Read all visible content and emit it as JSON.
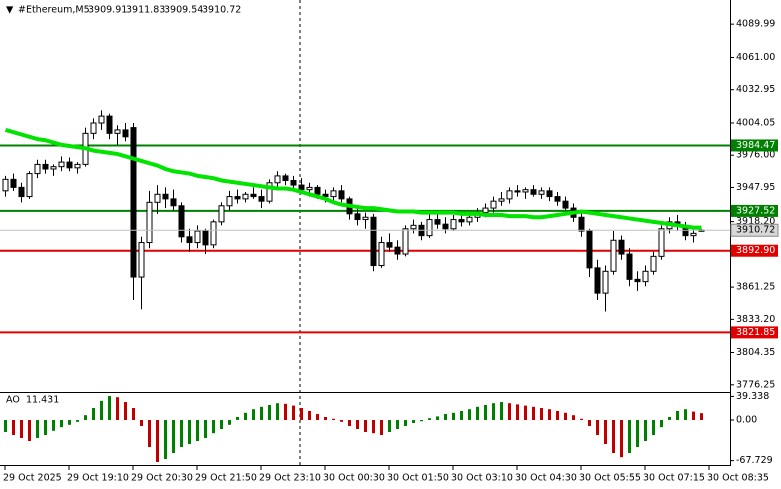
{
  "chart_data": {
    "type": "candlestick",
    "title": "#Ethereum,M5",
    "candles": [
      [
        3945,
        3958,
        3940,
        3955
      ],
      [
        3955,
        3960,
        3945,
        3948
      ],
      [
        3948,
        3952,
        3935,
        3940
      ],
      [
        3940,
        3962,
        3938,
        3960
      ],
      [
        3960,
        3972,
        3956,
        3968
      ],
      [
        3968,
        3972,
        3960,
        3964
      ],
      [
        3964,
        3968,
        3958,
        3966
      ],
      [
        3966,
        3975,
        3962,
        3970
      ],
      [
        3970,
        3974,
        3962,
        3965
      ],
      [
        3965,
        3970,
        3960,
        3968
      ],
      [
        3968,
        4000,
        3966,
        3995
      ],
      [
        3995,
        4008,
        3990,
        4004
      ],
      [
        4004,
        4015,
        3998,
        4010
      ],
      [
        4010,
        4012,
        3990,
        3995
      ],
      [
        3995,
        4002,
        3985,
        3998
      ],
      [
        3998,
        4004,
        3988,
        3992
      ],
      [
        4000,
        4004,
        3850,
        3870
      ],
      [
        3870,
        3905,
        3842,
        3900
      ],
      [
        3900,
        3945,
        3895,
        3935
      ],
      [
        3935,
        3950,
        3925,
        3942
      ],
      [
        3942,
        3948,
        3930,
        3938
      ],
      [
        3938,
        3946,
        3928,
        3932
      ],
      [
        3932,
        3935,
        3900,
        3905
      ],
      [
        3905,
        3912,
        3892,
        3900
      ],
      [
        3900,
        3915,
        3895,
        3910
      ],
      [
        3910,
        3912,
        3890,
        3898
      ],
      [
        3898,
        3920,
        3895,
        3918
      ],
      [
        3918,
        3935,
        3915,
        3932
      ],
      [
        3932,
        3945,
        3928,
        3940
      ],
      [
        3940,
        3946,
        3934,
        3938
      ],
      [
        3938,
        3944,
        3935,
        3942
      ],
      [
        3942,
        3948,
        3938,
        3940
      ],
      [
        3940,
        3946,
        3930,
        3936
      ],
      [
        3936,
        3955,
        3934,
        3952
      ],
      [
        3952,
        3962,
        3948,
        3958
      ],
      [
        3958,
        3960,
        3950,
        3954
      ],
      [
        3954,
        3958,
        3946,
        3950
      ],
      [
        3950,
        3956,
        3942,
        3946
      ],
      [
        3946,
        3952,
        3940,
        3948
      ],
      [
        3948,
        3950,
        3938,
        3942
      ],
      [
        3942,
        3946,
        3935,
        3940
      ],
      [
        3940,
        3948,
        3936,
        3945
      ],
      [
        3945,
        3950,
        3935,
        3938
      ],
      [
        3938,
        3940,
        3920,
        3925
      ],
      [
        3925,
        3930,
        3915,
        3920
      ],
      [
        3920,
        3926,
        3912,
        3922
      ],
      [
        3922,
        3925,
        3875,
        3880
      ],
      [
        3880,
        3905,
        3878,
        3900
      ],
      [
        3900,
        3908,
        3892,
        3896
      ],
      [
        3896,
        3902,
        3885,
        3890
      ],
      [
        3890,
        3915,
        3888,
        3912
      ],
      [
        3912,
        3920,
        3908,
        3915
      ],
      [
        3915,
        3918,
        3902,
        3906
      ],
      [
        3906,
        3925,
        3904,
        3920
      ],
      [
        3920,
        3926,
        3912,
        3916
      ],
      [
        3916,
        3922,
        3908,
        3912
      ],
      [
        3912,
        3924,
        3910,
        3920
      ],
      [
        3920,
        3926,
        3914,
        3918
      ],
      [
        3918,
        3926,
        3915,
        3922
      ],
      [
        3922,
        3930,
        3918,
        3926
      ],
      [
        3926,
        3934,
        3922,
        3930
      ],
      [
        3930,
        3940,
        3926,
        3936
      ],
      [
        3936,
        3944,
        3932,
        3938
      ],
      [
        3938,
        3948,
        3934,
        3945
      ],
      [
        3945,
        3950,
        3940,
        3944
      ],
      [
        3944,
        3948,
        3938,
        3946
      ],
      [
        3946,
        3950,
        3940,
        3942
      ],
      [
        3942,
        3948,
        3938,
        3945
      ],
      [
        3945,
        3948,
        3936,
        3940
      ],
      [
        3940,
        3944,
        3932,
        3936
      ],
      [
        3936,
        3940,
        3928,
        3930
      ],
      [
        3930,
        3934,
        3918,
        3922
      ],
      [
        3922,
        3926,
        3905,
        3910
      ],
      [
        3910,
        3912,
        3870,
        3878
      ],
      [
        3878,
        3885,
        3850,
        3856
      ],
      [
        3856,
        3880,
        3840,
        3875
      ],
      [
        3875,
        3910,
        3872,
        3902
      ],
      [
        3902,
        3906,
        3885,
        3890
      ],
      [
        3890,
        3895,
        3862,
        3868
      ],
      [
        3868,
        3875,
        3858,
        3866
      ],
      [
        3866,
        3880,
        3862,
        3875
      ],
      [
        3875,
        3892,
        3872,
        3888
      ],
      [
        3888,
        3915,
        3885,
        3912
      ],
      [
        3912,
        3922,
        3908,
        3918
      ],
      [
        3918,
        3924,
        3910,
        3914
      ],
      [
        3914,
        3918,
        3902,
        3906
      ],
      [
        3906,
        3912,
        3900,
        3908
      ],
      [
        3909.91,
        3911.83,
        3909.54,
        3910.72
      ]
    ],
    "up_color": "#ffffff",
    "down_color": "#000000",
    "x_labels": [
      "29 Oct 2025",
      "29 Oct 19:10",
      "29 Oct 20:30",
      "29 Oct 21:50",
      "29 Oct 23:10",
      "30 Oct 00:30",
      "30 Oct 01:50",
      "30 Oct 03:10",
      "30 Oct 04:30",
      "30 Oct 05:55",
      "30 Oct 07:15",
      "30 Oct 08:35"
    ],
    "ylim": [
      3770,
      4111
    ],
    "yticks": [
      4089.99,
      {
        "value": 4061,
        "label": "4061.00"
      },
      4032.95,
      4004.05,
      {
        "value": 3976,
        "label": "3976.00"
      },
      3947.95,
      {
        "value": 3918.2,
        "label": "3918.20"
      },
      3861.25,
      {
        "value": 3833.2,
        "label": "3833.20"
      },
      3804.35,
      3776.25
    ],
    "ma": {
      "color": "#00e400",
      "values": [
        3998,
        3996,
        3994,
        3992,
        3990,
        3989,
        3987,
        3985,
        3984,
        3983,
        3982,
        3980,
        3979,
        3978,
        3977,
        3975,
        3973,
        3971,
        3969,
        3967,
        3964,
        3962,
        3961,
        3960,
        3958,
        3957,
        3956,
        3954,
        3953,
        3952,
        3951,
        3950,
        3949,
        3948,
        3947,
        3947,
        3946,
        3944,
        3942,
        3940,
        3938,
        3935,
        3933,
        3932,
        3931,
        3930,
        3930,
        3929,
        3928,
        3927,
        3927,
        3927,
        3926,
        3926,
        3926,
        3926,
        3926,
        3925,
        3925,
        3925,
        3924,
        3924,
        3924,
        3923,
        3923,
        3923,
        3922,
        3922,
        3923,
        3924,
        3925,
        3926,
        3927,
        3926,
        3925,
        3924,
        3923,
        3922,
        3921,
        3920,
        3919,
        3918,
        3917,
        3916,
        3915,
        3914,
        3913,
        3913
      ]
    },
    "levels": [
      {
        "value": 3984.47,
        "color": "#008000"
      },
      {
        "value": 3927.52,
        "color": "#008000"
      },
      {
        "value": 3892.9,
        "label": "3892.90",
        "color": "#e00000"
      },
      {
        "value": 3821.85,
        "color": "#e00000"
      }
    ],
    "indicator": {
      "name": "AO",
      "up_color": "#008000",
      "down_color": "#c00000",
      "ylim": [
        -75,
        45
      ],
      "yticks": [
        39.338,
        {
          "value": 0,
          "label": "0.00"
        },
        -67.729
      ],
      "values": [
        -20,
        -25,
        -30,
        -35,
        -30,
        -25,
        -18,
        -12,
        -8,
        -3,
        8,
        20,
        32,
        40,
        38,
        30,
        20,
        -10,
        -45,
        -70,
        -65,
        -55,
        -45,
        -40,
        -35,
        -30,
        -22,
        -15,
        -8,
        5,
        12,
        18,
        22,
        25,
        28,
        27,
        24,
        20,
        15,
        10,
        5,
        2,
        -3,
        -10,
        -15,
        -20,
        -22,
        -25,
        -20,
        -15,
        -10,
        -5,
        -2,
        3,
        6,
        10,
        12,
        15,
        18,
        22,
        25,
        28,
        30,
        28,
        26,
        24,
        22,
        20,
        18,
        15,
        12,
        8,
        2,
        -10,
        -25,
        -40,
        -55,
        -62,
        -55,
        -45,
        -35,
        -25,
        -12,
        5,
        15,
        18,
        14,
        11.431
      ]
    }
  }
}
